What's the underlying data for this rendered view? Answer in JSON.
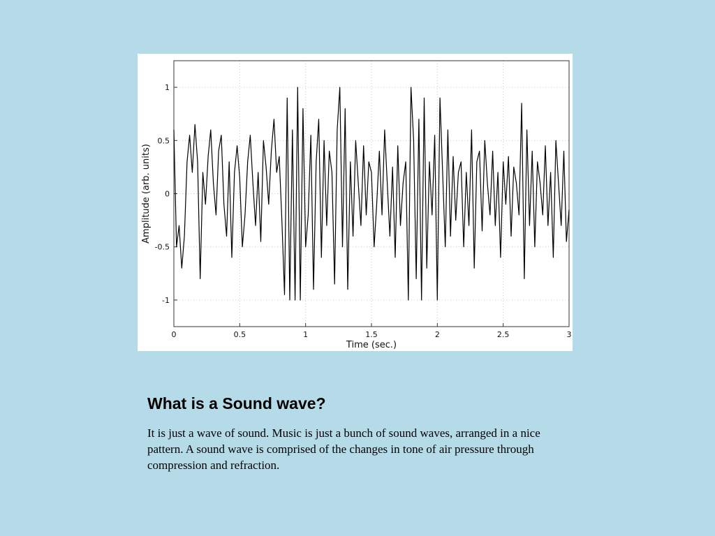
{
  "slide": {
    "title": "What is a Sound wave?",
    "body": "It is just a wave of sound. Music is just a bunch of sound  waves, arranged in a nice pattern. A sound wave is comprised of the changes in tone of air pressure through compression and refraction."
  },
  "chart_data": {
    "type": "line",
    "title": "",
    "xlabel": "Time (sec.)",
    "ylabel": "Amplitude (arb. units)",
    "xlim": [
      0,
      3
    ],
    "ylim": [
      -1.25,
      1.25
    ],
    "xticks": [
      0,
      0.5,
      1,
      1.5,
      2,
      2.5,
      3
    ],
    "xtick_labels": [
      "0",
      "0.5",
      "1",
      "1.5",
      "2",
      "2.5",
      "3"
    ],
    "yticks": [
      -1,
      -0.5,
      0,
      0.5,
      1
    ],
    "ytick_labels": [
      "-1",
      "-0.5",
      "0",
      "0.5",
      "1"
    ],
    "grid": true,
    "line_color": "#000000",
    "series": [
      {
        "x": [
          0,
          0.02,
          0.04,
          0.06,
          0.08,
          0.1,
          0.12,
          0.14,
          0.16,
          0.18,
          0.2,
          0.22,
          0.24,
          0.26,
          0.28,
          0.3,
          0.32,
          0.34,
          0.36,
          0.38,
          0.4,
          0.42,
          0.44,
          0.46,
          0.48,
          0.5,
          0.52,
          0.54,
          0.56,
          0.58,
          0.6,
          0.62,
          0.64,
          0.66,
          0.68,
          0.7,
          0.72,
          0.74,
          0.76,
          0.78,
          0.8,
          0.82,
          0.84,
          0.86,
          0.88,
          0.9,
          0.92,
          0.94,
          0.96,
          0.98,
          1.0,
          1.02,
          1.04,
          1.06,
          1.08,
          1.1,
          1.12,
          1.14,
          1.16,
          1.18,
          1.2,
          1.22,
          1.24,
          1.26,
          1.28,
          1.3,
          1.32,
          1.34,
          1.36,
          1.38,
          1.4,
          1.42,
          1.44,
          1.46,
          1.48,
          1.5,
          1.52,
          1.54,
          1.56,
          1.58,
          1.6,
          1.62,
          1.64,
          1.66,
          1.68,
          1.7,
          1.72,
          1.74,
          1.76,
          1.78,
          1.8,
          1.82,
          1.84,
          1.86,
          1.88,
          1.9,
          1.92,
          1.94,
          1.96,
          1.98,
          2.0,
          2.02,
          2.04,
          2.06,
          2.08,
          2.1,
          2.12,
          2.14,
          2.16,
          2.18,
          2.2,
          2.22,
          2.24,
          2.26,
          2.28,
          2.3,
          2.32,
          2.34,
          2.36,
          2.38,
          2.4,
          2.42,
          2.44,
          2.46,
          2.48,
          2.5,
          2.52,
          2.54,
          2.56,
          2.58,
          2.6,
          2.62,
          2.64,
          2.66,
          2.68,
          2.7,
          2.72,
          2.74,
          2.76,
          2.78,
          2.8,
          2.82,
          2.84,
          2.86,
          2.88,
          2.9,
          2.92,
          2.94,
          2.96,
          2.98,
          3.0
        ],
        "y": [
          0.6,
          -0.5,
          -0.3,
          -0.7,
          -0.4,
          0.3,
          0.55,
          0.2,
          0.65,
          0.3,
          -0.8,
          0.2,
          -0.1,
          0.35,
          0.6,
          0.1,
          -0.2,
          0.4,
          0.55,
          -0.1,
          -0.4,
          0.3,
          -0.6,
          0.2,
          0.45,
          0.15,
          -0.5,
          -0.2,
          0.3,
          0.55,
          0.1,
          -0.3,
          0.2,
          -0.45,
          0.5,
          0.25,
          -0.1,
          0.4,
          0.7,
          0.2,
          0.35,
          -0.25,
          -0.95,
          0.9,
          -1.0,
          0.6,
          -1.0,
          1.0,
          -1.0,
          0.8,
          -0.5,
          -0.2,
          0.55,
          -0.9,
          0.3,
          0.7,
          -0.6,
          0.5,
          -0.3,
          0.4,
          0.2,
          -0.85,
          0.6,
          1.0,
          -0.5,
          0.8,
          -0.9,
          0.3,
          -0.4,
          0.5,
          0.1,
          -0.3,
          0.45,
          -0.2,
          0.3,
          0.2,
          -0.5,
          -0.1,
          0.4,
          -0.2,
          0.6,
          0.1,
          -0.4,
          0.25,
          -0.6,
          0.45,
          -0.3,
          0.1,
          0.3,
          -1.0,
          1.0,
          0.5,
          -0.8,
          0.7,
          -1.0,
          0.9,
          -0.7,
          0.3,
          -0.2,
          0.55,
          -1.0,
          0.9,
          0.2,
          -0.5,
          0.6,
          -0.4,
          0.35,
          -0.25,
          0.2,
          0.3,
          -0.5,
          0.2,
          -0.3,
          0.6,
          -0.7,
          0.3,
          0.4,
          -0.35,
          0.5,
          0.1,
          -0.2,
          0.4,
          -0.3,
          0.2,
          -0.6,
          0.3,
          -0.1,
          0.35,
          -0.4,
          0.25,
          0.1,
          -0.2,
          0.85,
          -0.8,
          0.6,
          -0.3,
          0.4,
          -0.5,
          0.3,
          0.1,
          -0.2,
          0.45,
          -0.3,
          0.2,
          -0.6,
          0.5,
          0.1,
          -0.3,
          0.4,
          -0.45,
          -0.15
        ]
      }
    ]
  }
}
